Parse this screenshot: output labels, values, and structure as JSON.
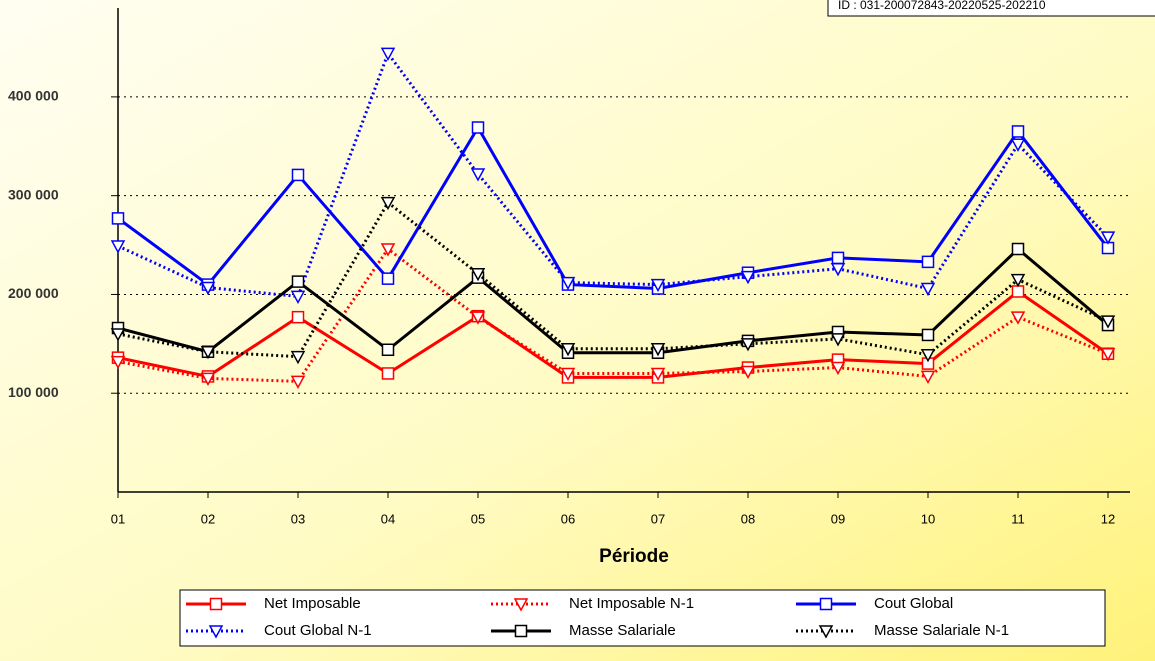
{
  "chart_data": {
    "type": "line",
    "id_label": "ID : 031-200072843-20220525-202210",
    "x_label": "Période",
    "categories": [
      "01",
      "02",
      "03",
      "04",
      "05",
      "06",
      "07",
      "08",
      "09",
      "10",
      "11",
      "12"
    ],
    "ylim": [
      0,
      490000
    ],
    "yticks": [
      {
        "value": 100000,
        "label": "100 000"
      },
      {
        "value": 200000,
        "label": "200 000"
      },
      {
        "value": 300000,
        "label": "300 000"
      },
      {
        "value": 400000,
        "label": "400 000"
      }
    ],
    "grid": true,
    "legend": "bottom",
    "series": [
      {
        "name": "Net Imposable",
        "color": "#ff0000",
        "dashed": false,
        "marker": "square",
        "values": [
          136000,
          117000,
          177000,
          120000,
          178000,
          116000,
          116000,
          126000,
          134000,
          130000,
          203000,
          140000
        ]
      },
      {
        "name": "Net Imposable N-1",
        "color": "#ff0000",
        "dashed": true,
        "marker": "triangle",
        "values": [
          132000,
          115000,
          112000,
          246000,
          177000,
          120000,
          120000,
          122000,
          126000,
          117000,
          177000,
          140000
        ]
      },
      {
        "name": "Cout Global",
        "color": "#0000ff",
        "dashed": false,
        "marker": "square",
        "values": [
          277000,
          210000,
          321000,
          216000,
          369000,
          210000,
          206000,
          222000,
          237000,
          233000,
          365000,
          247000
        ]
      },
      {
        "name": "Cout Global N-1",
        "color": "#0000ff",
        "dashed": true,
        "marker": "triangle",
        "values": [
          249000,
          207000,
          198000,
          444000,
          322000,
          212000,
          210000,
          218000,
          226000,
          206000,
          352000,
          258000
        ]
      },
      {
        "name": "Masse Salariale",
        "color": "#000000",
        "dashed": false,
        "marker": "square",
        "values": [
          166000,
          142000,
          213000,
          144000,
          217000,
          141000,
          141000,
          153000,
          162000,
          159000,
          246000,
          169000
        ]
      },
      {
        "name": "Masse Salariale N-1",
        "color": "#000000",
        "dashed": true,
        "marker": "triangle",
        "values": [
          160000,
          142000,
          137000,
          293000,
          221000,
          145000,
          145000,
          150000,
          155000,
          139000,
          215000,
          173000
        ]
      }
    ]
  }
}
